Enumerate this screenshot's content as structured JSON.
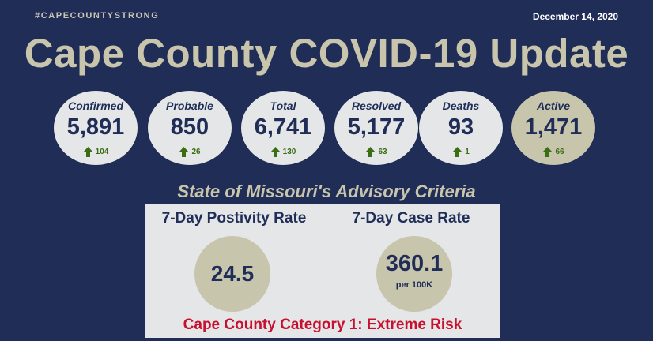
{
  "header": {
    "hashtag": "#CAPECOUNTYSTRONG",
    "date": "December 14, 2020",
    "title": "Cape County COVID-19 Update"
  },
  "stats": [
    {
      "label": "Confirmed",
      "value": "5,891",
      "change": "104"
    },
    {
      "label": "Probable",
      "value": "850",
      "change": "26"
    },
    {
      "label": "Total",
      "value": "6,741",
      "change": "130"
    },
    {
      "label": "Resolved",
      "value": "5,177",
      "change": "63"
    },
    {
      "label": "Deaths",
      "value": "93",
      "change": "1"
    },
    {
      "label": "Active",
      "value": "1,471",
      "change": "66"
    }
  ],
  "advisory": {
    "title": "State of Missouri's Advisory Criteria",
    "positivity_label": "7-Day Postivity Rate",
    "positivity_value": "24.5",
    "case_rate_label": "7-Day Case Rate",
    "case_rate_value": "360.1",
    "case_rate_unit": "per 100K",
    "category": "Cape County Category 1: Extreme Risk"
  },
  "colors": {
    "background": "#1f2d57",
    "accent": "#c9c5ac",
    "circle": "#e5e6e8",
    "up_arrow": "#3a6e12",
    "risk": "#c8102e"
  }
}
